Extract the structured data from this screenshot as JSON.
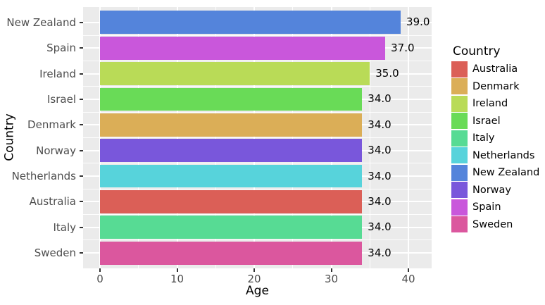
{
  "colors": {
    "figure_bg": "#ffffff",
    "panel_bg": "#ebebeb",
    "grid": "#ffffff",
    "tick_mark": "#333333",
    "tick_label": "#4d4d4d",
    "text": "#000000"
  },
  "chart_data": {
    "type": "bar",
    "orientation": "horizontal",
    "title": "",
    "xlabel": "Age",
    "ylabel": "Country",
    "categories": [
      "New Zealand",
      "Spain",
      "Ireland",
      "Israel",
      "Denmark",
      "Norway",
      "Netherlands",
      "Australia",
      "Italy",
      "Sweden"
    ],
    "values": [
      39,
      37,
      35,
      34,
      34,
      34,
      34,
      34,
      34,
      34
    ],
    "bar_labels": [
      "39.0",
      "37.0",
      "35.0",
      "34.0",
      "34.0",
      "34.0",
      "34.0",
      "34.0",
      "34.0",
      "34.0"
    ],
    "xticks": [
      0,
      10,
      20,
      30,
      40
    ],
    "xtick_labels": [
      "0",
      "10",
      "20",
      "30",
      "40"
    ],
    "minor_xticks": [
      5,
      15,
      25,
      35
    ],
    "xlim": [
      -2.2,
      43.0
    ],
    "grid": true,
    "legend_position": "right",
    "legend": {
      "title": "Country",
      "entries": [
        {
          "label": "Australia",
          "color": "#db5f57"
        },
        {
          "label": "Denmark",
          "color": "#dbae57"
        },
        {
          "label": "Ireland",
          "color": "#b9db57"
        },
        {
          "label": "Israel",
          "color": "#69db57"
        },
        {
          "label": "Italy",
          "color": "#57db94"
        },
        {
          "label": "Netherlands",
          "color": "#57d3db"
        },
        {
          "label": "New Zealand",
          "color": "#5484db"
        },
        {
          "label": "Norway",
          "color": "#7957db"
        },
        {
          "label": "Spain",
          "color": "#c957db"
        },
        {
          "label": "Sweden",
          "color": "#db579e"
        }
      ]
    }
  }
}
